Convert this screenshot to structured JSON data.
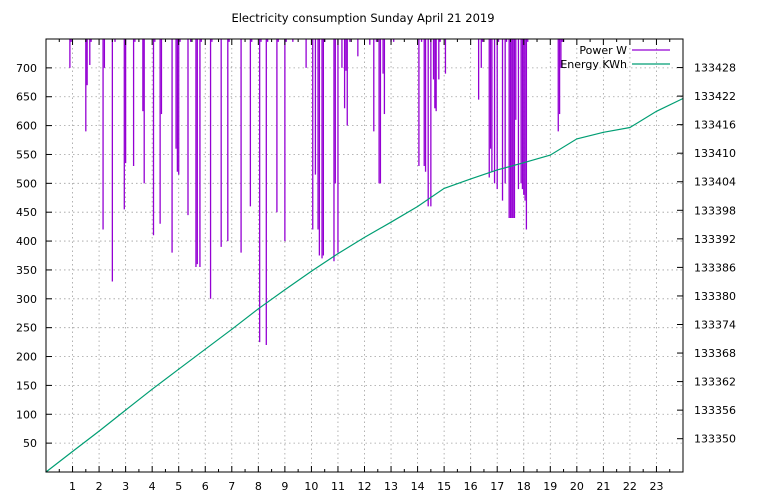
{
  "chart_data": {
    "type": "line",
    "title": "Electricity consumption Sunday April 21 2019",
    "xlabel": "",
    "ylabel": "",
    "y2label": "",
    "grid": true,
    "legend_position": "top-right",
    "xlim": [
      0,
      24
    ],
    "ylim": [
      0,
      750
    ],
    "y2lim": [
      133343,
      133434
    ],
    "xticks": [
      1,
      2,
      3,
      4,
      5,
      6,
      7,
      8,
      9,
      10,
      11,
      12,
      13,
      14,
      15,
      16,
      17,
      18,
      19,
      20,
      21,
      22,
      23
    ],
    "xtick_labels": [
      "1",
      "2",
      "3",
      "4",
      "5",
      "6",
      "7",
      "8",
      "9",
      "10",
      "11",
      "12",
      "13",
      "14",
      "15",
      "16",
      "17",
      "18",
      "19",
      "20",
      "21",
      "22",
      "23"
    ],
    "yticks": [
      50,
      100,
      150,
      200,
      250,
      300,
      350,
      400,
      450,
      500,
      550,
      600,
      650,
      700
    ],
    "ytick_labels": [
      "50",
      "100",
      "150",
      "200",
      "250",
      "300",
      "350",
      "400",
      "450",
      "500",
      "550",
      "600",
      "650",
      "700"
    ],
    "y2ticks": [
      133350,
      133356,
      133362,
      133368,
      133374,
      133380,
      133386,
      133392,
      133398,
      133404,
      133410,
      133416,
      133422,
      133428
    ],
    "y2tick_labels": [
      "133350",
      "133356",
      "133362",
      "133368",
      "133374",
      "133380",
      "133386",
      "133392",
      "133398",
      "133404",
      "133410",
      "133416",
      "133422",
      "133428"
    ],
    "series": [
      {
        "name": "Power W",
        "axis": "y",
        "style": "impulses",
        "color": "#9400d3",
        "spikes": [
          [
            0.9,
            700
          ],
          [
            0.95,
            745
          ],
          [
            1.5,
            590
          ],
          [
            1.55,
            670
          ],
          [
            1.65,
            705
          ],
          [
            1.7,
            745
          ],
          [
            2.15,
            420
          ],
          [
            2.2,
            700
          ],
          [
            2.5,
            330
          ],
          [
            2.6,
            745
          ],
          [
            2.95,
            455
          ],
          [
            3.0,
            535
          ],
          [
            3.3,
            530
          ],
          [
            3.35,
            745
          ],
          [
            3.65,
            625
          ],
          [
            3.7,
            500
          ],
          [
            4.05,
            410
          ],
          [
            4.1,
            745
          ],
          [
            4.3,
            430
          ],
          [
            4.35,
            620
          ],
          [
            4.75,
            380
          ],
          [
            4.9,
            560
          ],
          [
            4.95,
            520
          ],
          [
            5.0,
            515
          ],
          [
            5.05,
            745
          ],
          [
            5.35,
            445
          ],
          [
            5.45,
            745
          ],
          [
            5.65,
            355
          ],
          [
            5.7,
            360
          ],
          [
            5.8,
            355
          ],
          [
            5.85,
            745
          ],
          [
            6.2,
            300
          ],
          [
            6.25,
            745
          ],
          [
            6.6,
            390
          ],
          [
            6.85,
            400
          ],
          [
            6.9,
            745
          ],
          [
            7.35,
            380
          ],
          [
            7.7,
            460
          ],
          [
            7.75,
            745
          ],
          [
            8.05,
            225
          ],
          [
            8.1,
            745
          ],
          [
            8.3,
            220
          ],
          [
            8.35,
            745
          ],
          [
            8.7,
            450
          ],
          [
            8.75,
            745
          ],
          [
            9.0,
            400
          ],
          [
            9.05,
            745
          ],
          [
            9.3,
            745
          ],
          [
            9.8,
            700
          ],
          [
            10.05,
            420
          ],
          [
            10.15,
            515
          ],
          [
            10.25,
            420
          ],
          [
            10.3,
            375
          ],
          [
            10.4,
            370
          ],
          [
            10.45,
            375
          ],
          [
            10.5,
            745
          ],
          [
            10.85,
            365
          ],
          [
            10.9,
            500
          ],
          [
            11.0,
            380
          ],
          [
            11.15,
            700
          ],
          [
            11.25,
            630
          ],
          [
            11.3,
            695
          ],
          [
            11.35,
            600
          ],
          [
            11.45,
            745
          ],
          [
            11.75,
            720
          ],
          [
            12.2,
            740
          ],
          [
            12.35,
            590
          ],
          [
            12.45,
            745
          ],
          [
            12.55,
            500
          ],
          [
            12.6,
            500
          ],
          [
            12.7,
            690
          ],
          [
            12.75,
            620
          ],
          [
            13.0,
            745
          ],
          [
            13.1,
            745
          ],
          [
            14.05,
            530
          ],
          [
            14.15,
            745
          ],
          [
            14.25,
            530
          ],
          [
            14.3,
            520
          ],
          [
            14.4,
            460
          ],
          [
            14.5,
            460
          ],
          [
            14.6,
            680
          ],
          [
            14.65,
            630
          ],
          [
            14.7,
            625
          ],
          [
            14.8,
            680
          ],
          [
            14.85,
            745
          ],
          [
            15.05,
            690
          ],
          [
            16.3,
            645
          ],
          [
            16.4,
            700
          ],
          [
            16.45,
            745
          ],
          [
            16.7,
            510
          ],
          [
            16.75,
            560
          ],
          [
            16.8,
            520
          ],
          [
            16.9,
            500
          ],
          [
            17.0,
            490
          ],
          [
            17.05,
            745
          ],
          [
            17.2,
            470
          ],
          [
            17.3,
            500
          ],
          [
            17.35,
            745
          ],
          [
            17.45,
            440
          ],
          [
            17.5,
            440
          ],
          [
            17.55,
            440
          ],
          [
            17.6,
            440
          ],
          [
            17.65,
            440
          ],
          [
            17.7,
            610
          ],
          [
            17.8,
            490
          ],
          [
            17.9,
            500
          ],
          [
            17.95,
            490
          ],
          [
            18.0,
            480
          ],
          [
            18.05,
            470
          ],
          [
            18.1,
            420
          ],
          [
            18.15,
            745
          ],
          [
            19.3,
            590
          ],
          [
            19.35,
            620
          ],
          [
            19.4,
            700
          ],
          [
            19.45,
            745
          ],
          [
            19.5,
            745
          ]
        ]
      },
      {
        "name": "Energy KWh",
        "axis": "y2",
        "style": "line",
        "color": "#009e73",
        "points": [
          [
            0,
            133343
          ],
          [
            1,
            133347.3
          ],
          [
            2,
            133351.6
          ],
          [
            3,
            133356.0
          ],
          [
            4,
            133360.4
          ],
          [
            5,
            133364.6
          ],
          [
            6,
            133368.8
          ],
          [
            7,
            133373.0
          ],
          [
            8,
            133377.3
          ],
          [
            9,
            133381.3
          ],
          [
            10,
            133385.2
          ],
          [
            11,
            133388.9
          ],
          [
            12,
            133392.3
          ],
          [
            13,
            133395.5
          ],
          [
            14,
            133398.8
          ],
          [
            15,
            133402.6
          ],
          [
            16,
            133404.6
          ],
          [
            17,
            133406.5
          ],
          [
            18,
            133408.0
          ],
          [
            19,
            133409.6
          ],
          [
            20,
            133413.0
          ],
          [
            21,
            133414.4
          ],
          [
            22,
            133415.4
          ],
          [
            23,
            133418.8
          ],
          [
            24,
            133421.5
          ]
        ]
      }
    ]
  }
}
